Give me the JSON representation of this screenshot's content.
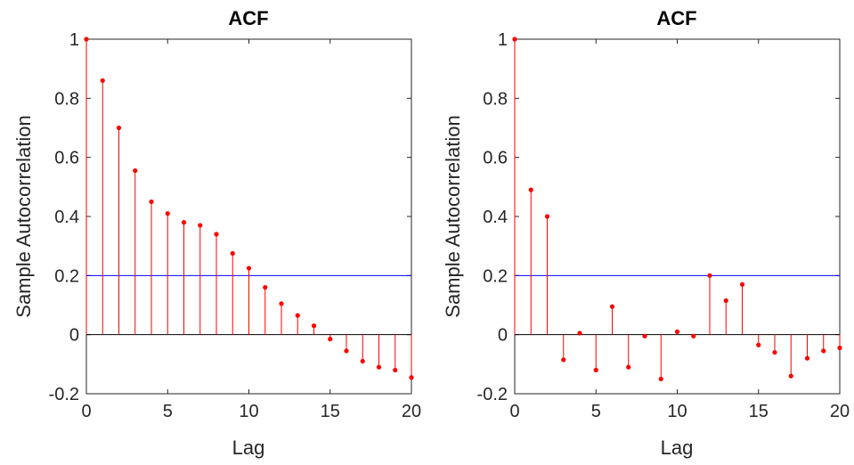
{
  "charts": [
    {
      "title": "ACF",
      "xlabel": "Lag",
      "ylabel": "Sample Autocorrelation",
      "xticks": [
        "0",
        "5",
        "10",
        "15",
        "20"
      ],
      "yticks": [
        "1",
        "0.8",
        "0.6",
        "0.4",
        "0.2",
        "0",
        "-0.2"
      ]
    },
    {
      "title": "ACF",
      "xlabel": "Lag",
      "ylabel": "Sample Autocorrelation",
      "xticks": [
        "0",
        "5",
        "10",
        "15",
        "20"
      ],
      "yticks": [
        "1",
        "0.8",
        "0.6",
        "0.4",
        "0.2",
        "0",
        "-0.2"
      ]
    }
  ],
  "colors": {
    "stem": "#ff0000",
    "bound": "#0000ff",
    "zero_line": "#000000",
    "axes": "#262626"
  },
  "chart_data": [
    {
      "type": "stem",
      "title": "ACF",
      "xlabel": "Lag",
      "ylabel": "Sample Autocorrelation",
      "xlim": [
        0,
        20
      ],
      "ylim": [
        -0.2,
        1
      ],
      "x": [
        0,
        1,
        2,
        3,
        4,
        5,
        6,
        7,
        8,
        9,
        10,
        11,
        12,
        13,
        14,
        15,
        16,
        17,
        18,
        19,
        20
      ],
      "values": [
        1.0,
        0.86,
        0.7,
        0.555,
        0.45,
        0.41,
        0.38,
        0.37,
        0.34,
        0.275,
        0.225,
        0.16,
        0.105,
        0.065,
        0.03,
        -0.015,
        -0.055,
        -0.09,
        -0.11,
        -0.12,
        -0.145
      ],
      "confidence_bound": 0.2,
      "grid": false
    },
    {
      "type": "stem",
      "title": "ACF",
      "xlabel": "Lag",
      "ylabel": "Sample Autocorrelation",
      "xlim": [
        0,
        20
      ],
      "ylim": [
        -0.2,
        1
      ],
      "x": [
        0,
        1,
        2,
        3,
        4,
        5,
        6,
        7,
        8,
        9,
        10,
        11,
        12,
        13,
        14,
        15,
        16,
        17,
        18,
        19,
        20
      ],
      "values": [
        1.0,
        0.49,
        0.4,
        -0.085,
        0.005,
        -0.12,
        0.095,
        -0.11,
        -0.005,
        -0.15,
        0.01,
        -0.005,
        0.2,
        0.115,
        0.17,
        -0.035,
        -0.06,
        -0.14,
        -0.08,
        -0.055,
        -0.045
      ],
      "confidence_bound": 0.2,
      "grid": false
    }
  ]
}
